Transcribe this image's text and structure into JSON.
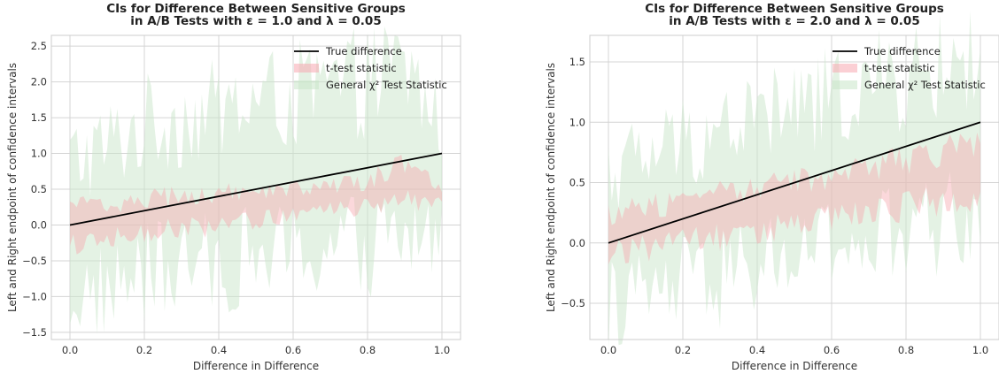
{
  "chart_data": [
    {
      "type": "area",
      "title_line1": "CIs for Difference Between Sensitive Groups",
      "title_line2": "in A/B Tests with ε = 1.0 and λ = 0.05",
      "xlabel": "Difference in Difference",
      "ylabel": "Left and Right endpoint of confidence intervals",
      "xlim": [
        -0.05,
        1.05
      ],
      "ylim": [
        -1.6,
        2.65
      ],
      "xticks": [
        "0.0",
        "0.2",
        "0.4",
        "0.6",
        "0.8",
        "1.0"
      ],
      "yticks": [
        "−1.5",
        "−1.0",
        "−0.5",
        "0.0",
        "0.5",
        "1.0",
        "1.5",
        "2.0",
        "2.5"
      ],
      "ytick_values": [
        -1.5,
        -1.0,
        -0.5,
        0.0,
        0.5,
        1.0,
        1.5,
        2.0,
        2.5
      ],
      "legend_position": "top-right",
      "grid": true,
      "series": [
        {
          "name": "True difference",
          "kind": "line",
          "color": "#000000",
          "x": [
            0.0,
            1.0
          ],
          "y": [
            0.0,
            1.0
          ]
        },
        {
          "name": "t-test statistic",
          "kind": "band",
          "color": "#f7a8b0",
          "x": [
            0.0,
            0.1,
            0.2,
            0.3,
            0.4,
            0.5,
            0.6,
            0.7,
            0.8,
            0.9,
            1.0
          ],
          "lower": [
            -0.25,
            -0.2,
            -0.1,
            -0.05,
            0.0,
            0.05,
            0.15,
            0.2,
            0.25,
            0.3,
            0.35
          ],
          "upper": [
            0.25,
            0.3,
            0.35,
            0.4,
            0.45,
            0.45,
            0.5,
            0.55,
            0.6,
            0.9,
            0.5
          ]
        },
        {
          "name": "General χ² Test Statistic",
          "kind": "band",
          "color": "#c9e6c9",
          "x": [
            0.0,
            0.1,
            0.2,
            0.3,
            0.4,
            0.5,
            0.6,
            0.7,
            0.8,
            0.9,
            1.0
          ],
          "lower": [
            -1.0,
            -0.9,
            -0.7,
            -0.6,
            -0.5,
            -0.45,
            -0.4,
            -0.3,
            -0.3,
            -0.2,
            -0.1
          ],
          "upper": [
            0.9,
            1.1,
            1.4,
            1.5,
            1.6,
            1.7,
            1.8,
            1.9,
            2.0,
            2.2,
            1.4
          ]
        }
      ]
    },
    {
      "type": "area",
      "title_line1": "CIs for Difference Between Sensitive Groups",
      "title_line2": "in A/B Tests with ε = 2.0 and λ = 0.05",
      "xlabel": "Difference in Difference",
      "ylabel": "Left and Right endpoint of confidence intervals",
      "xlim": [
        -0.05,
        1.05
      ],
      "ylim": [
        -0.8,
        1.72
      ],
      "xticks": [
        "0.0",
        "0.2",
        "0.4",
        "0.6",
        "0.8",
        "1.0"
      ],
      "yticks": [
        "−0.5",
        "0.0",
        "0.5",
        "1.0",
        "1.5"
      ],
      "ytick_values": [
        -0.5,
        0.0,
        0.5,
        1.0,
        1.5
      ],
      "legend_position": "top-right",
      "grid": true,
      "series": [
        {
          "name": "True difference",
          "kind": "line",
          "color": "#000000",
          "x": [
            0.0,
            1.0
          ],
          "y": [
            0.0,
            1.0
          ]
        },
        {
          "name": "t-test statistic",
          "kind": "band",
          "color": "#f7a8b0",
          "x": [
            0.0,
            0.1,
            0.2,
            0.3,
            0.4,
            0.5,
            0.6,
            0.7,
            0.8,
            0.9,
            1.0
          ],
          "lower": [
            -0.1,
            -0.05,
            0.0,
            0.05,
            0.1,
            0.15,
            0.2,
            0.25,
            0.3,
            0.35,
            0.4
          ],
          "upper": [
            0.25,
            0.3,
            0.35,
            0.4,
            0.45,
            0.5,
            0.55,
            0.6,
            0.7,
            0.75,
            0.8
          ]
        },
        {
          "name": "General χ² Test Statistic",
          "kind": "band",
          "color": "#c9e6c9",
          "x": [
            0.0,
            0.1,
            0.2,
            0.3,
            0.4,
            0.5,
            0.6,
            0.7,
            0.8,
            0.9,
            1.0
          ],
          "lower": [
            -0.5,
            -0.45,
            -0.35,
            -0.3,
            -0.2,
            -0.1,
            -0.05,
            0.0,
            0.05,
            0.15,
            0.3
          ],
          "upper": [
            0.6,
            0.7,
            0.85,
            0.95,
            1.05,
            1.1,
            1.2,
            1.3,
            1.35,
            1.45,
            1.55
          ]
        }
      ]
    }
  ]
}
